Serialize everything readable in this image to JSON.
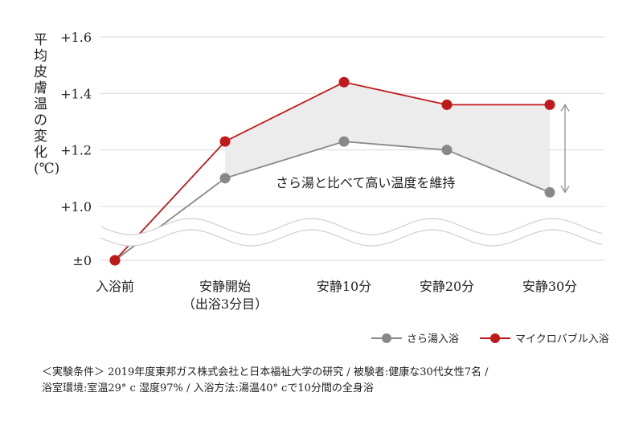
{
  "chart_data": {
    "type": "line",
    "ylabel": "平均皮膚温の変化(℃)",
    "y_tick_labels": [
      "±0",
      "+1.0",
      "+1.2",
      "+1.4",
      "+1.6"
    ],
    "categories": [
      "入浴前",
      "安静開始\n（出浴3分目）",
      "安静10分",
      "安静20分",
      "安静30分"
    ],
    "series": [
      {
        "name": "さら湯入浴",
        "color": "#888888",
        "values": [
          0,
          1.1,
          1.23,
          1.2,
          1.05
        ]
      },
      {
        "name": "マイクロバブル入浴",
        "color": "#c0191c",
        "values": [
          0,
          1.23,
          1.44,
          1.36,
          1.36
        ]
      }
    ],
    "annotation": "さら湯と比べて高い温度を維持",
    "axis_break": true,
    "grid": true,
    "legend_position": "bottom-right"
  },
  "note": {
    "line1": "＜実験条件＞ 2019年度東邦ガス株式会社と日本福祉大学の研究 / 被験者:健康な30代女性7名 /",
    "line2": "浴室環境:室温29° c 湿度97% / 入浴方法:湯温40° cで10分間の全身浴"
  }
}
